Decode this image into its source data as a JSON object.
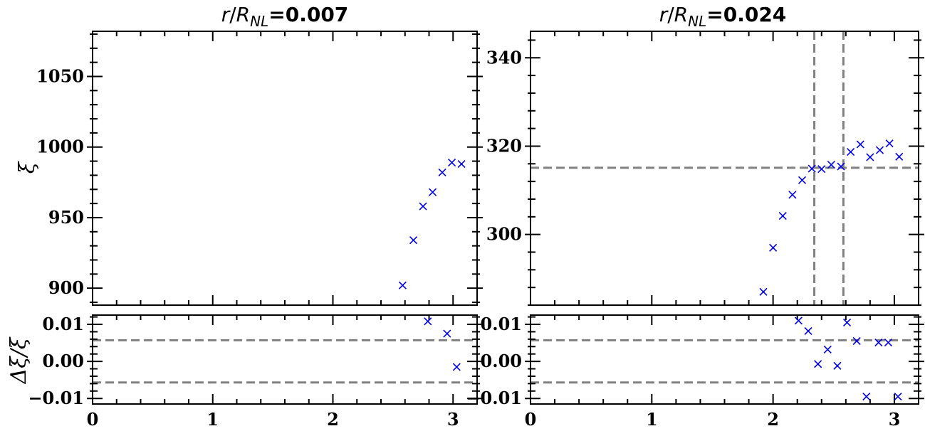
{
  "chart_data": [
    {
      "panel": "top-left",
      "type": "scatter",
      "title": "r/R_NL=0.007",
      "title_parts": {
        "r": "r",
        "slash": "/",
        "R": "R",
        "sub": "NL",
        "eq": "=0.007"
      },
      "ylabel": "ξ",
      "xlim": [
        0,
        3.2
      ],
      "ylim": [
        888,
        1082
      ],
      "xticks": [
        0,
        1,
        2,
        3
      ],
      "yticks": [
        900,
        950,
        1000,
        1050
      ],
      "points": [
        [
          2.58,
          902
        ],
        [
          2.67,
          934
        ],
        [
          2.75,
          958
        ],
        [
          2.83,
          968
        ],
        [
          2.91,
          982
        ],
        [
          2.99,
          989
        ],
        [
          3.07,
          988
        ]
      ],
      "marker_color": "#0000e6",
      "ref_lines": {
        "h": [],
        "v": []
      }
    },
    {
      "panel": "top-right",
      "type": "scatter",
      "title": "r/R_NL=0.024",
      "title_parts": {
        "r": "r",
        "slash": "/",
        "R": "R",
        "sub": "NL",
        "eq": "=0.024"
      },
      "ylabel": "",
      "xlim": [
        0,
        3.2
      ],
      "ylim": [
        284,
        346
      ],
      "xticks": [
        0,
        1,
        2,
        3
      ],
      "yticks": [
        300,
        320,
        340
      ],
      "points": [
        [
          1.92,
          287
        ],
        [
          2.0,
          297
        ],
        [
          2.08,
          304.2
        ],
        [
          2.16,
          309
        ],
        [
          2.24,
          312.3
        ],
        [
          2.32,
          314.9
        ],
        [
          2.4,
          314.8
        ],
        [
          2.48,
          315.8
        ],
        [
          2.56,
          315.4
        ],
        [
          2.64,
          318.7
        ],
        [
          2.72,
          320.4
        ],
        [
          2.8,
          317.5
        ],
        [
          2.88,
          319.1
        ],
        [
          2.96,
          320.6
        ],
        [
          3.04,
          317.6
        ]
      ],
      "marker_color": "#0000e6",
      "ref_lines": {
        "h": [
          315.1
        ],
        "v": [
          2.34,
          2.58
        ]
      }
    },
    {
      "panel": "bottom-left",
      "type": "scatter",
      "title": "",
      "ylabel": "Δξ/ξ",
      "xlim": [
        0,
        3.2
      ],
      "ylim": [
        -0.0115,
        0.0125
      ],
      "xticks": [
        0,
        1,
        2,
        3
      ],
      "yticks": [
        -0.01,
        0.0,
        0.01
      ],
      "ytick_labels": [
        "−0.01",
        "0.00",
        "0.01"
      ],
      "points": [
        [
          2.79,
          0.0108
        ],
        [
          2.95,
          0.0075
        ],
        [
          3.03,
          -0.0015
        ]
      ],
      "marker_color": "#0000e6",
      "ref_lines": {
        "h": [
          0.0057,
          -0.0057
        ],
        "v": []
      }
    },
    {
      "panel": "bottom-right",
      "type": "scatter",
      "title": "",
      "ylabel": "",
      "xlim": [
        0,
        3.2
      ],
      "ylim": [
        -0.0115,
        0.0125
      ],
      "xticks": [
        0,
        1,
        2,
        3
      ],
      "yticks": [
        -0.01,
        0.0,
        0.01
      ],
      "ytick_labels": [
        "−0.01",
        "0.00",
        "0.01"
      ],
      "points": [
        [
          2.21,
          0.011
        ],
        [
          2.29,
          0.0082
        ],
        [
          2.37,
          -0.0007
        ],
        [
          2.45,
          0.0032
        ],
        [
          2.53,
          -0.0012
        ],
        [
          2.61,
          0.0105
        ],
        [
          2.69,
          0.0055
        ],
        [
          2.77,
          -0.0095
        ],
        [
          2.87,
          0.0051
        ],
        [
          2.95,
          0.0051
        ],
        [
          3.03,
          -0.0095
        ]
      ],
      "marker_color": "#0000e6",
      "ref_lines": {
        "h": [
          0.0057,
          -0.0057
        ],
        "v": []
      }
    }
  ]
}
